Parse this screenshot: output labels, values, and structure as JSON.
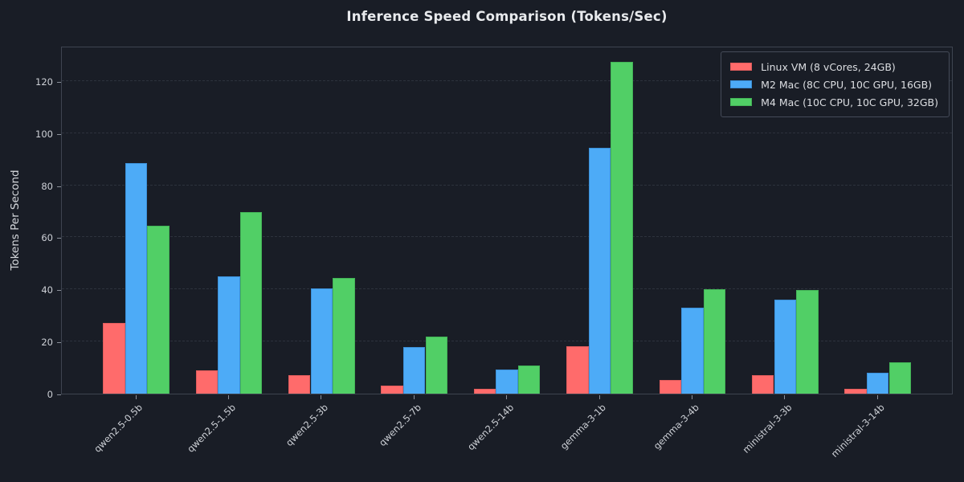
{
  "chart_data": {
    "type": "bar",
    "title": "Inference Speed Comparison (Tokens/Sec)",
    "ylabel": "Tokens Per Second",
    "xlabel": "",
    "categories": [
      "qwen2.5-0.5b",
      "qwen2.5-1.5b",
      "qwen2.5-3b",
      "qwen2.5-7b",
      "qwen2.5-14b",
      "gemma-3-1b",
      "gemma-3-4b",
      "ministral-3-3b",
      "ministral-3-14b"
    ],
    "series": [
      {
        "name": "Linux VM (8 vCores, 24GB)",
        "color": "#ff6b6b",
        "edge_color": "#e05c5c",
        "values": [
          27,
          9,
          7,
          3.2,
          2,
          18.3,
          5.4,
          7,
          2
        ]
      },
      {
        "name": "M2 Mac (8C CPU, 10C GPU, 16GB)",
        "color": "#4dabf7",
        "edge_color": "#3c90d8",
        "values": [
          88.5,
          45,
          40.5,
          18,
          9.3,
          94.5,
          33,
          36,
          8.1
        ]
      },
      {
        "name": "M4 Mac (10C CPU, 10C GPU, 32GB)",
        "color": "#51cf66",
        "edge_color": "#43b457",
        "values": [
          64.4,
          69.7,
          44.3,
          21.8,
          10.8,
          127.3,
          40,
          39.7,
          11.9
        ]
      }
    ],
    "yticks": [
      0,
      20,
      40,
      60,
      80,
      100,
      120
    ],
    "ylim": [
      0,
      133.5
    ],
    "grid": "dashed-horizontal",
    "legend_position": "upper-right"
  },
  "colors": {
    "background": "#191d26",
    "axes_border": "#3e4450",
    "gridline": "#2d323d",
    "tick_text": "#cdd0d6",
    "title_text": "#e8eaed",
    "legend_border": "#454b59"
  }
}
